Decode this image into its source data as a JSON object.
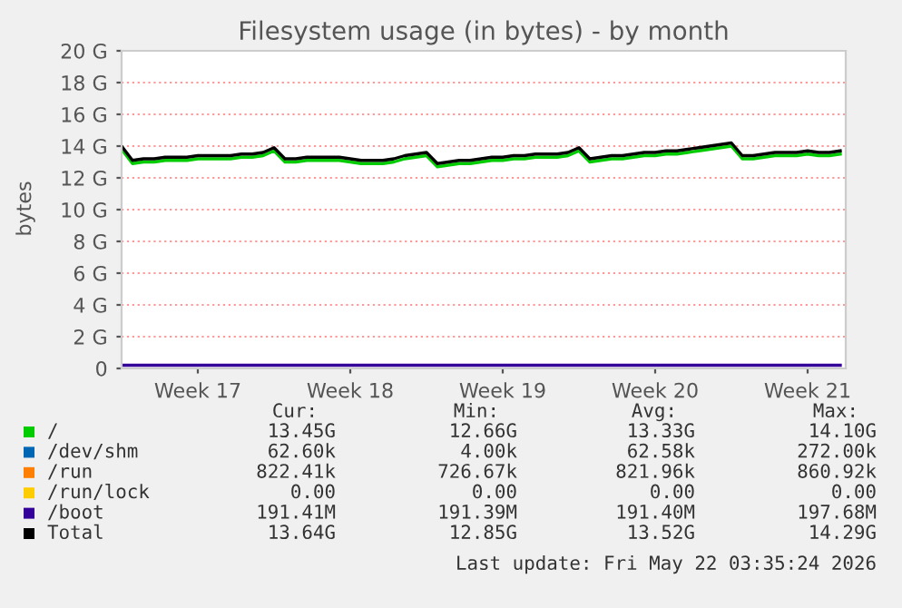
{
  "chart_data": {
    "type": "line",
    "title": "Filesystem usage (in bytes) - by month",
    "ylabel": "bytes",
    "categories": [
      null,
      null,
      null,
      null,
      null,
      null,
      null,
      "Week 17",
      null,
      null,
      null,
      null,
      null,
      null,
      null,
      null,
      null,
      null,
      null,
      null,
      null,
      "Week 18",
      null,
      null,
      null,
      null,
      null,
      null,
      null,
      null,
      null,
      null,
      null,
      null,
      null,
      "Week 19",
      null,
      null,
      null,
      null,
      null,
      null,
      null,
      null,
      null,
      null,
      null,
      null,
      null,
      "Week 20",
      null,
      null,
      null,
      null,
      null,
      null,
      null,
      null,
      null,
      null,
      null,
      null,
      null,
      "Week 21",
      null,
      null,
      null
    ],
    "ylim": [
      0,
      20
    ],
    "yticks": [
      0,
      {
        "value": 2,
        "label": "2 G"
      },
      {
        "value": 4,
        "label": "4 G"
      },
      {
        "value": 6,
        "label": "6 G"
      },
      {
        "value": 8,
        "label": "8 G"
      },
      {
        "value": 10,
        "label": "10 G"
      },
      {
        "value": 12,
        "label": "12 G"
      },
      {
        "value": 14,
        "label": "14 G"
      },
      {
        "value": 16,
        "label": "16 G"
      },
      {
        "value": 18,
        "label": "18 G"
      },
      {
        "value": 20,
        "label": "20 G"
      }
    ],
    "grid": "y",
    "legend": "bottom",
    "series": [
      {
        "name": "/",
        "color": "#00cc00",
        "values": [
          13.8,
          12.9,
          13.0,
          13.0,
          13.1,
          13.1,
          13.1,
          13.2,
          13.2,
          13.2,
          13.2,
          13.3,
          13.3,
          13.4,
          13.7,
          13.0,
          13.0,
          13.1,
          13.1,
          13.1,
          13.1,
          13.0,
          12.9,
          12.9,
          12.9,
          13.0,
          13.2,
          13.3,
          13.4,
          12.7,
          12.8,
          12.9,
          12.9,
          13.0,
          13.1,
          13.1,
          13.2,
          13.2,
          13.3,
          13.3,
          13.3,
          13.4,
          13.7,
          13.0,
          13.1,
          13.2,
          13.2,
          13.3,
          13.4,
          13.4,
          13.5,
          13.5,
          13.6,
          13.7,
          13.8,
          13.9,
          14.0,
          13.2,
          13.2,
          13.3,
          13.4,
          13.4,
          13.4,
          13.5,
          13.4,
          13.4,
          13.5
        ]
      },
      {
        "name": "/dev/shm",
        "color": "#0066b3",
        "values": [
          null,
          null,
          null,
          null,
          null,
          null,
          null,
          null,
          null,
          null,
          null,
          null,
          null,
          null,
          null,
          null,
          null,
          null,
          null,
          null,
          null,
          null,
          null,
          null,
          null,
          null,
          null,
          null,
          null,
          null,
          null,
          null,
          null,
          null,
          null,
          null,
          null,
          null,
          null,
          null,
          null,
          null,
          null,
          null,
          null,
          null,
          null,
          null,
          null,
          null,
          null,
          null,
          null,
          null,
          null,
          null,
          null,
          null,
          null,
          null,
          null,
          null,
          null,
          null,
          null,
          null,
          null
        ]
      },
      {
        "name": "/run",
        "color": "#ff8000",
        "values": [
          null,
          null,
          null,
          null,
          null,
          null,
          null,
          null,
          null,
          null,
          null,
          null,
          null,
          null,
          null,
          null,
          null,
          null,
          null,
          null,
          null,
          null,
          null,
          null,
          null,
          null,
          null,
          null,
          null,
          null,
          null,
          null,
          null,
          null,
          null,
          null,
          null,
          null,
          null,
          null,
          null,
          null,
          null,
          null,
          null,
          null,
          null,
          null,
          null,
          null,
          null,
          null,
          null,
          null,
          null,
          null,
          null,
          null,
          null,
          null,
          null,
          null,
          null,
          null,
          null,
          null,
          null
        ]
      },
      {
        "name": "/run/lock",
        "color": "#ffcc00",
        "values": [
          null,
          null,
          null,
          null,
          null,
          null,
          null,
          null,
          null,
          null,
          null,
          null,
          null,
          null,
          null,
          null,
          null,
          null,
          null,
          null,
          null,
          null,
          null,
          null,
          null,
          null,
          null,
          null,
          null,
          null,
          null,
          null,
          null,
          null,
          null,
          null,
          null,
          null,
          null,
          null,
          null,
          null,
          null,
          null,
          null,
          null,
          null,
          null,
          null,
          null,
          null,
          null,
          null,
          null,
          null,
          null,
          null,
          null,
          null,
          null,
          null,
          null,
          null,
          null,
          null,
          null,
          null
        ]
      },
      {
        "name": "/boot",
        "color": "#330099",
        "values": [
          0.2,
          0.2,
          0.2,
          0.2,
          0.2,
          0.2,
          0.2,
          0.2,
          0.2,
          0.2,
          0.2,
          0.2,
          0.2,
          0.2,
          0.2,
          0.2,
          0.2,
          0.2,
          0.2,
          0.2,
          0.2,
          0.2,
          0.2,
          0.2,
          0.2,
          0.2,
          0.2,
          0.2,
          0.2,
          0.2,
          0.2,
          0.2,
          0.2,
          0.2,
          0.2,
          0.2,
          0.2,
          0.2,
          0.2,
          0.2,
          0.2,
          0.2,
          0.2,
          0.2,
          0.2,
          0.2,
          0.2,
          0.2,
          0.2,
          0.2,
          0.2,
          0.2,
          0.2,
          0.2,
          0.2,
          0.2,
          0.2,
          0.2,
          0.2,
          0.2,
          0.2,
          0.2,
          0.2,
          0.2,
          0.2,
          0.2,
          0.2
        ]
      },
      {
        "name": "Total",
        "color": "#000000",
        "values": [
          14.0,
          13.1,
          13.2,
          13.2,
          13.3,
          13.3,
          13.3,
          13.4,
          13.4,
          13.4,
          13.4,
          13.5,
          13.5,
          13.6,
          13.9,
          13.2,
          13.2,
          13.3,
          13.3,
          13.3,
          13.3,
          13.2,
          13.1,
          13.1,
          13.1,
          13.2,
          13.4,
          13.5,
          13.6,
          12.9,
          13.0,
          13.1,
          13.1,
          13.2,
          13.3,
          13.3,
          13.4,
          13.4,
          13.5,
          13.5,
          13.5,
          13.6,
          13.9,
          13.2,
          13.3,
          13.4,
          13.4,
          13.5,
          13.6,
          13.6,
          13.7,
          13.7,
          13.8,
          13.9,
          14.0,
          14.1,
          14.2,
          13.4,
          13.4,
          13.5,
          13.6,
          13.6,
          13.6,
          13.7,
          13.6,
          13.6,
          13.7
        ]
      }
    ],
    "annotations": [
      "Cur:",
      "Min:",
      "Avg:",
      "Max:",
      "13.45G",
      "12.66G",
      "13.33G",
      "14.10G",
      "62.60k",
      "4.00k",
      "62.58k",
      "272.00k",
      "822.41k",
      "726.67k",
      "821.96k",
      "860.92k",
      "0.00",
      "0.00",
      "0.00",
      "0.00",
      "191.41M",
      "191.39M",
      "191.40M",
      "197.68M",
      "13.64G",
      "12.85G",
      "13.52G",
      "14.29G",
      "Last update: Fri May 22 03:35:24 2026"
    ]
  }
}
